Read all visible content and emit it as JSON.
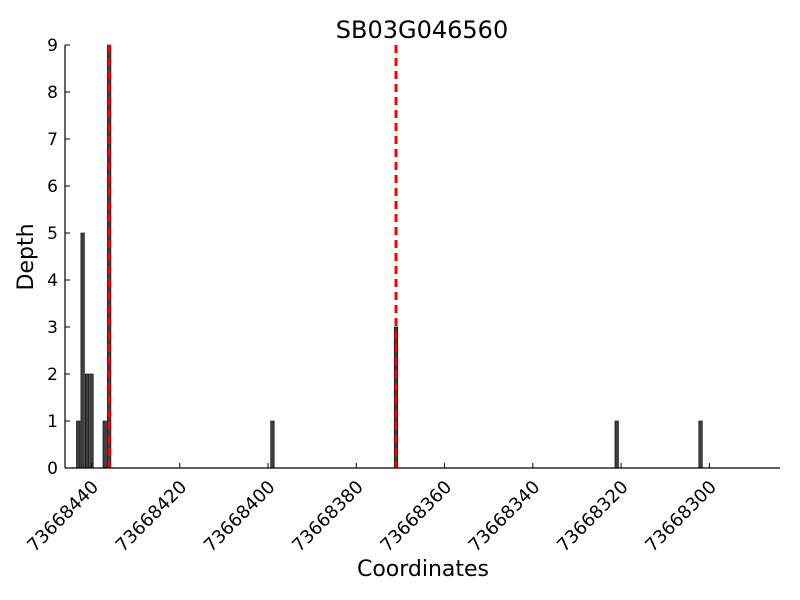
{
  "chart_data": {
    "type": "bar",
    "title": "SB03G046560",
    "xlabel": "Coordinates",
    "ylabel": "Depth",
    "x_inverted": true,
    "xlim": [
      73668446,
      73668284
    ],
    "ylim": [
      0,
      9
    ],
    "xticks": [
      73668440,
      73668420,
      73668400,
      73668380,
      73668360,
      73668340,
      73668320,
      73668300
    ],
    "yticks": [
      0,
      1,
      2,
      3,
      4,
      5,
      6,
      7,
      8,
      9
    ],
    "grid": false,
    "bar_color": "#404040",
    "marker_color": "#ff0000",
    "series": [
      {
        "x": [
          73668443,
          73668442,
          73668441,
          73668440,
          73668437,
          73668436,
          73668399,
          73668371,
          73668321,
          73668302
        ],
        "values": [
          1,
          5,
          2,
          2,
          1,
          9,
          1,
          3,
          1,
          1
        ]
      }
    ],
    "marker_lines": [
      73668436,
      73668371
    ]
  }
}
